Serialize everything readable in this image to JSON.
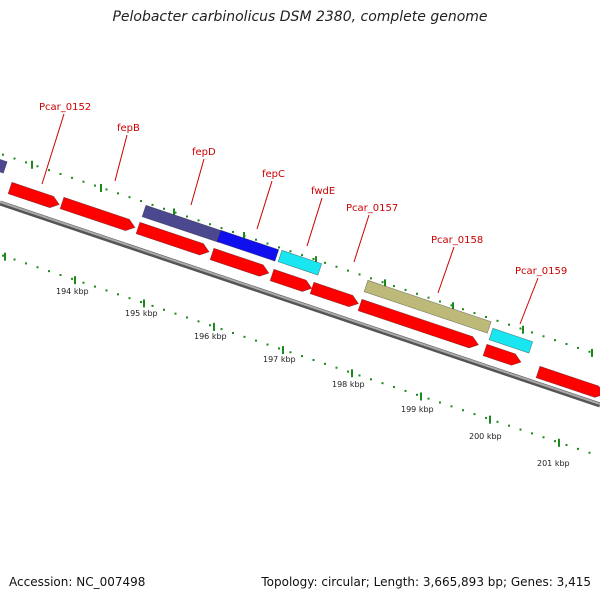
{
  "title": "Pelobacter carbinolicus DSM 2380, complete genome",
  "footer": {
    "accession": "Accession: NC_007498",
    "stats": "Topology: circular; Length: 3,665,893 bp; Genes: 3,415"
  },
  "colors": {
    "red_feature": "#ff0000",
    "slate_feature": "#4b4890",
    "blue_feature": "#1010ee",
    "cyan_feature": "#19e6f0",
    "olive_feature": "#bdb978",
    "backbone": "#888888",
    "tick": "#1a8a1a",
    "label_red": "#cc0000"
  },
  "gene_labels": [
    "Pcar_0152",
    "fepB",
    "fepD",
    "fepC",
    "fwdE",
    "Pcar_0157",
    "Pcar_0158",
    "Pcar_0159"
  ],
  "kbp_labels": [
    "194 kbp",
    "195 kbp",
    "196 kbp",
    "197 kbp",
    "198 kbp",
    "199 kbp",
    "200 kbp",
    "201 kbp"
  ]
}
